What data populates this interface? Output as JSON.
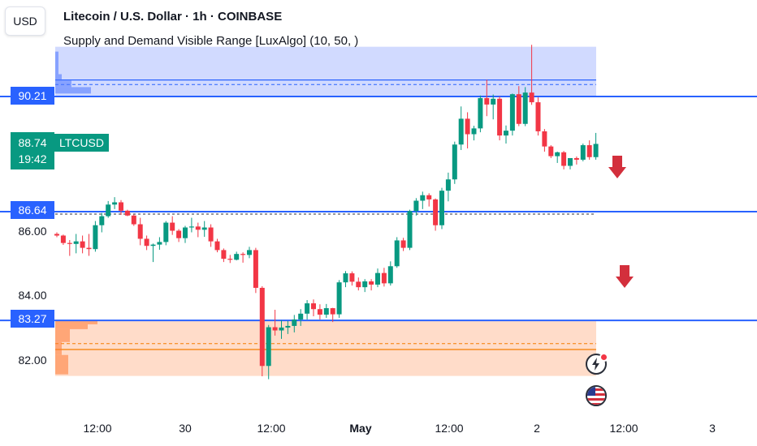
{
  "toolbar": {
    "currency": "USD"
  },
  "header": {
    "title": "Litecoin / U.S. Dollar · 1h · COINBASE",
    "indicator": "Supply and Demand Visible Range [LuxAlgo] (10, 50, )"
  },
  "price_labels": {
    "upper": "90.21",
    "current_price": "88.74",
    "symbol": "LTCUSD",
    "countdown": "19:42",
    "middle": "86.64",
    "lower": "83.27"
  },
  "colors": {
    "up": "#089981",
    "down": "#f23645",
    "level_line": "#2962ff",
    "supply_zone": "#c5d1ff",
    "demand_zone": "#ffd6bf",
    "arrow": "#d32f3c"
  },
  "icons": [
    "arrow-down-icon",
    "arrow-down-icon",
    "lightning-event-icon",
    "us-flag-event-icon"
  ],
  "chart_data": {
    "type": "candlestick",
    "symbol": "LTCUSD",
    "y_ticks": [
      "86.00",
      "84.00",
      "82.00"
    ],
    "x_ticks": [
      {
        "label": "12:00",
        "bold": false
      },
      {
        "label": "30",
        "bold": false
      },
      {
        "label": "12:00",
        "bold": false
      },
      {
        "label": "May",
        "bold": true
      },
      {
        "label": "12:00",
        "bold": false
      },
      {
        "label": "2",
        "bold": false
      },
      {
        "label": "12:00",
        "bold": false
      },
      {
        "label": "3",
        "bold": false
      }
    ],
    "ylim": [
      80.6,
      92.4
    ],
    "levels": {
      "supply": 90.21,
      "mid": 86.64,
      "demand": 83.27
    },
    "supply_zone": {
      "top": 91.75,
      "bottom": 90.21,
      "avg": 90.58
    },
    "demand_zone": {
      "top": 83.27,
      "bottom": 81.55,
      "avg": 82.55,
      "line": 82.37
    },
    "ohlc": [
      [
        85.95,
        86.0,
        85.85,
        85.9
      ],
      [
        85.9,
        85.93,
        85.61,
        85.67
      ],
      [
        85.67,
        85.76,
        85.27,
        85.64
      ],
      [
        85.64,
        85.95,
        85.35,
        85.72
      ],
      [
        85.72,
        85.9,
        85.35,
        85.52
      ],
      [
        85.52,
        85.95,
        85.27,
        85.48
      ],
      [
        85.48,
        86.35,
        85.4,
        86.22
      ],
      [
        86.22,
        86.6,
        86.0,
        86.5
      ],
      [
        86.5,
        86.97,
        86.45,
        86.86
      ],
      [
        86.86,
        87.09,
        86.72,
        86.93
      ],
      [
        86.93,
        87.0,
        86.54,
        86.67
      ],
      [
        86.67,
        86.7,
        86.5,
        86.52
      ],
      [
        86.52,
        86.55,
        86.2,
        86.25
      ],
      [
        86.25,
        86.45,
        85.6,
        85.8
      ],
      [
        85.8,
        85.9,
        85.45,
        85.58
      ],
      [
        85.58,
        85.65,
        85.08,
        85.62
      ],
      [
        85.62,
        85.85,
        85.46,
        85.7
      ],
      [
        85.7,
        86.35,
        85.6,
        86.3
      ],
      [
        86.3,
        86.5,
        85.92,
        86.05
      ],
      [
        86.05,
        86.1,
        85.7,
        85.82
      ],
      [
        85.82,
        86.2,
        85.67,
        86.15
      ],
      [
        86.15,
        86.45,
        86.0,
        86.18
      ],
      [
        86.18,
        86.3,
        85.85,
        86.08
      ],
      [
        86.08,
        86.35,
        85.86,
        86.15
      ],
      [
        86.15,
        86.25,
        85.55,
        85.72
      ],
      [
        85.72,
        85.8,
        85.38,
        85.45
      ],
      [
        85.45,
        85.5,
        85.08,
        85.18
      ],
      [
        85.18,
        85.3,
        85.05,
        85.15
      ],
      [
        85.15,
        85.4,
        85.13,
        85.33
      ],
      [
        85.33,
        85.38,
        85.06,
        85.3
      ],
      [
        85.3,
        85.55,
        85.2,
        85.45
      ],
      [
        85.45,
        85.52,
        84.12,
        84.28
      ],
      [
        84.28,
        84.33,
        81.54,
        81.86
      ],
      [
        81.86,
        83.13,
        81.45,
        83.06
      ],
      [
        83.06,
        83.6,
        82.8,
        82.96
      ],
      [
        82.96,
        83.28,
        82.7,
        83.05
      ],
      [
        83.05,
        83.25,
        82.85,
        83.1
      ],
      [
        83.1,
        83.44,
        82.9,
        83.3
      ],
      [
        83.3,
        83.62,
        83.1,
        83.48
      ],
      [
        83.48,
        83.9,
        83.3,
        83.8
      ],
      [
        83.8,
        83.92,
        83.4,
        83.62
      ],
      [
        83.62,
        83.77,
        83.3,
        83.45
      ],
      [
        83.45,
        83.78,
        83.35,
        83.65
      ],
      [
        83.65,
        83.66,
        83.22,
        83.46
      ],
      [
        83.46,
        84.52,
        83.35,
        84.45
      ],
      [
        84.45,
        84.8,
        84.3,
        84.73
      ],
      [
        84.73,
        84.79,
        84.35,
        84.47
      ],
      [
        84.47,
        84.6,
        84.2,
        84.3
      ],
      [
        84.3,
        84.55,
        84.15,
        84.48
      ],
      [
        84.48,
        84.55,
        84.2,
        84.38
      ],
      [
        84.38,
        84.88,
        84.3,
        84.74
      ],
      [
        84.74,
        84.9,
        84.32,
        84.42
      ],
      [
        84.42,
        85.1,
        84.35,
        84.95
      ],
      [
        84.95,
        85.85,
        84.9,
        85.75
      ],
      [
        85.75,
        85.83,
        85.42,
        85.52
      ],
      [
        85.52,
        86.7,
        85.45,
        86.66
      ],
      [
        86.66,
        87.06,
        86.52,
        86.98
      ],
      [
        86.98,
        87.26,
        86.72,
        87.15
      ],
      [
        87.15,
        87.21,
        86.8,
        87.02
      ],
      [
        87.02,
        87.05,
        86.05,
        86.22
      ],
      [
        86.22,
        87.38,
        86.1,
        87.29
      ],
      [
        87.29,
        87.85,
        86.96,
        87.64
      ],
      [
        87.64,
        88.81,
        87.5,
        88.72
      ],
      [
        88.72,
        89.9,
        88.55,
        89.52
      ],
      [
        89.52,
        89.72,
        88.6,
        89.04
      ],
      [
        89.04,
        89.3,
        88.85,
        89.22
      ],
      [
        89.22,
        90.24,
        89.1,
        90.16
      ],
      [
        90.16,
        90.73,
        89.6,
        89.96
      ],
      [
        89.96,
        90.27,
        89.5,
        90.14
      ],
      [
        90.14,
        90.21,
        88.85,
        89.0
      ],
      [
        89.0,
        89.31,
        88.75,
        89.15
      ],
      [
        89.15,
        90.3,
        89.0,
        90.28
      ],
      [
        90.28,
        90.53,
        89.29,
        89.36
      ],
      [
        89.36,
        90.5,
        89.29,
        90.33
      ],
      [
        90.33,
        91.81,
        89.95,
        90.03
      ],
      [
        90.03,
        90.18,
        89.0,
        89.13
      ],
      [
        89.13,
        89.2,
        88.5,
        88.66
      ],
      [
        88.66,
        88.7,
        88.3,
        88.36
      ],
      [
        88.36,
        88.5,
        88.15,
        88.48
      ],
      [
        88.48,
        88.52,
        87.95,
        88.06
      ],
      [
        88.06,
        88.3,
        87.95,
        88.3
      ],
      [
        88.3,
        88.35,
        88.1,
        88.25
      ],
      [
        88.25,
        88.75,
        88.2,
        88.7
      ],
      [
        88.7,
        88.85,
        88.25,
        88.33
      ],
      [
        88.33,
        89.08,
        88.25,
        88.74
      ]
    ]
  }
}
